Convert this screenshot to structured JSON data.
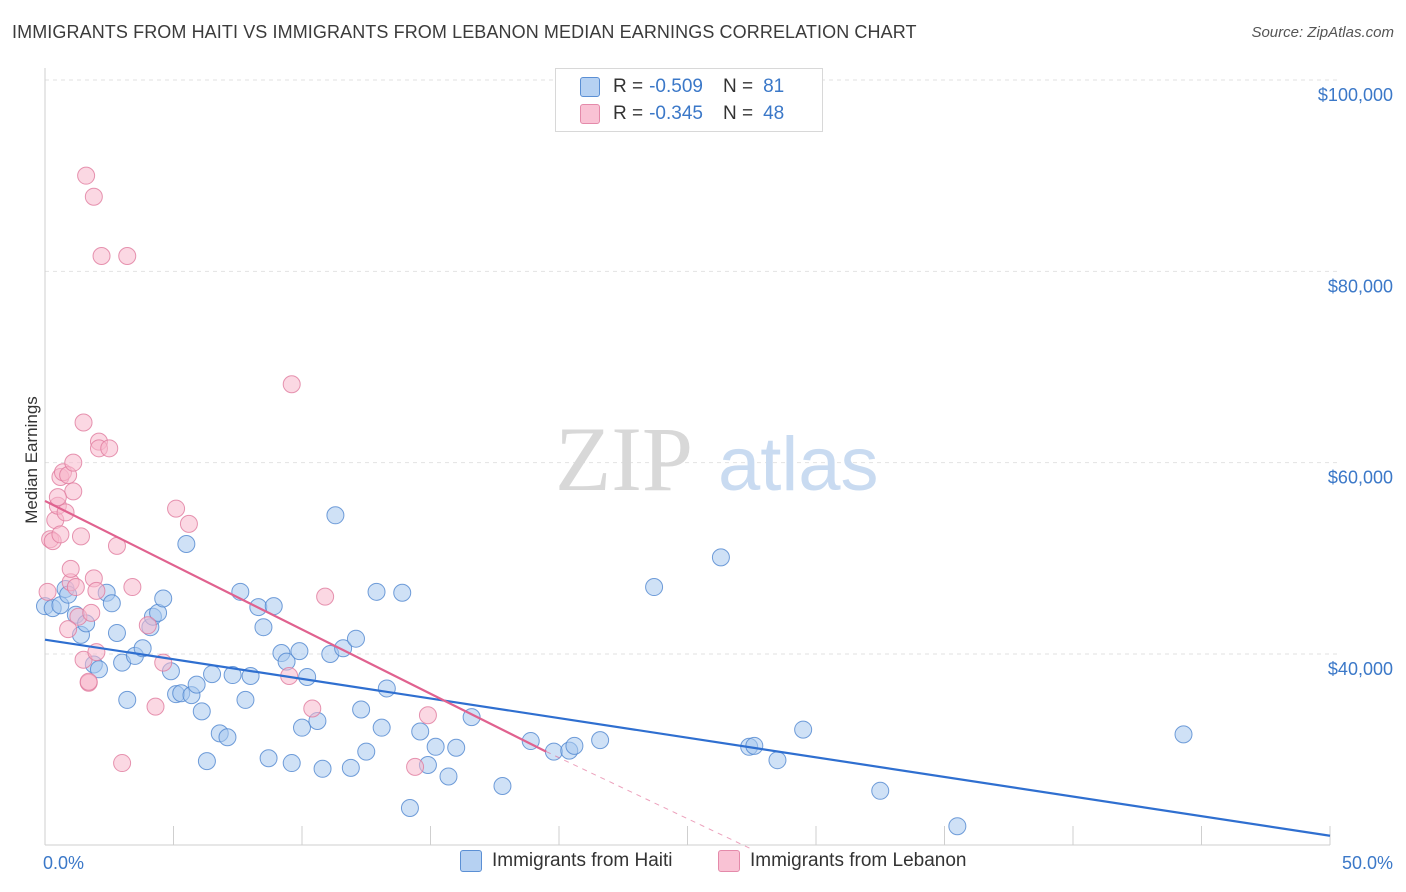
{
  "title": "IMMIGRANTS FROM HAITI VS IMMIGRANTS FROM LEBANON MEDIAN EARNINGS CORRELATION CHART",
  "source": "Source: ZipAtlas.com",
  "watermark": {
    "zip": "ZIP",
    "atlas": "atlas"
  },
  "legend": {
    "rows": [
      {
        "r_label": "R = ",
        "r_value": "-0.509",
        "n_label": "N = ",
        "n_value": "81"
      },
      {
        "r_label": "R = ",
        "r_value": "-0.345",
        "n_label": "N = ",
        "n_value": "48"
      }
    ]
  },
  "chart_data": {
    "type": "scatter",
    "title": "IMMIGRANTS FROM HAITI VS IMMIGRANTS FROM LEBANON MEDIAN EARNINGS CORRELATION CHART",
    "xlabel": "",
    "ylabel": "Median Earnings",
    "xlim": [
      0,
      50
    ],
    "ylim": [
      20000,
      102000
    ],
    "x_tick_labels": [
      "0.0%",
      "50.0%"
    ],
    "y_ticks": [
      40000,
      60000,
      80000,
      100000
    ],
    "y_tick_labels": [
      "$40,000",
      "$60,000",
      "$80,000",
      "$100,000"
    ],
    "grid": true,
    "series": [
      {
        "name": "Immigrants from Haiti",
        "color": "#a8c8ee",
        "edge": "#4f86d0",
        "trend_color": "#2f6fd0",
        "trend": {
          "x0": 0,
          "y0": 41500,
          "x1": 50,
          "y1": 21000
        },
        "points": [
          [
            0.0,
            45000
          ],
          [
            0.3,
            44800
          ],
          [
            0.6,
            45100
          ],
          [
            0.8,
            46800
          ],
          [
            0.9,
            46200
          ],
          [
            1.2,
            44100
          ],
          [
            1.4,
            42000
          ],
          [
            1.6,
            43200
          ],
          [
            1.9,
            38900
          ],
          [
            2.1,
            38400
          ],
          [
            2.4,
            46400
          ],
          [
            2.6,
            45300
          ],
          [
            2.8,
            42200
          ],
          [
            3.0,
            39100
          ],
          [
            3.2,
            35200
          ],
          [
            3.5,
            39800
          ],
          [
            3.8,
            40600
          ],
          [
            4.1,
            42800
          ],
          [
            4.2,
            43900
          ],
          [
            4.4,
            44300
          ],
          [
            4.6,
            45800
          ],
          [
            4.9,
            38200
          ],
          [
            5.1,
            35800
          ],
          [
            5.3,
            35900
          ],
          [
            5.5,
            51500
          ],
          [
            5.7,
            35700
          ],
          [
            5.9,
            36800
          ],
          [
            6.1,
            34000
          ],
          [
            6.3,
            28800
          ],
          [
            6.5,
            37900
          ],
          [
            6.8,
            31700
          ],
          [
            7.1,
            31300
          ],
          [
            7.3,
            37800
          ],
          [
            7.6,
            46500
          ],
          [
            7.8,
            35200
          ],
          [
            8.0,
            37700
          ],
          [
            8.3,
            44900
          ],
          [
            8.5,
            42800
          ],
          [
            8.7,
            29100
          ],
          [
            8.9,
            45000
          ],
          [
            9.2,
            40100
          ],
          [
            9.4,
            39200
          ],
          [
            9.6,
            28600
          ],
          [
            9.9,
            40300
          ],
          [
            10.0,
            32300
          ],
          [
            10.2,
            37600
          ],
          [
            10.6,
            33000
          ],
          [
            10.8,
            28000
          ],
          [
            11.1,
            40000
          ],
          [
            11.3,
            54500
          ],
          [
            11.6,
            40600
          ],
          [
            11.9,
            28100
          ],
          [
            12.1,
            41600
          ],
          [
            12.3,
            34200
          ],
          [
            12.5,
            29800
          ],
          [
            12.9,
            46500
          ],
          [
            13.1,
            32300
          ],
          [
            13.3,
            36400
          ],
          [
            13.9,
            46400
          ],
          [
            14.2,
            23900
          ],
          [
            14.6,
            31900
          ],
          [
            14.9,
            28400
          ],
          [
            15.2,
            30300
          ],
          [
            15.7,
            27200
          ],
          [
            16.0,
            30200
          ],
          [
            16.6,
            33400
          ],
          [
            17.8,
            26200
          ],
          [
            18.9,
            30900
          ],
          [
            19.8,
            29800
          ],
          [
            20.4,
            29900
          ],
          [
            20.6,
            30400
          ],
          [
            21.6,
            31000
          ],
          [
            23.7,
            47000
          ],
          [
            26.3,
            50100
          ],
          [
            27.4,
            30300
          ],
          [
            27.6,
            30400
          ],
          [
            28.5,
            28900
          ],
          [
            29.5,
            32100
          ],
          [
            32.5,
            25700
          ],
          [
            35.5,
            22000
          ],
          [
            44.3,
            31600
          ]
        ]
      },
      {
        "name": "Immigrants from Lebanon",
        "color": "#f7b8cc",
        "edge": "#e07a9e",
        "trend_color": "#e0628f",
        "trend": {
          "x0": 0,
          "y0": 56000,
          "x1": 19.5,
          "y1": 29800
        },
        "trend_dashed": {
          "x0": 19.5,
          "y0": 29800,
          "x1": 27.5,
          "y1": 19600
        },
        "points": [
          [
            0.1,
            46500
          ],
          [
            0.2,
            52000
          ],
          [
            0.3,
            51800
          ],
          [
            0.4,
            54000
          ],
          [
            0.5,
            55500
          ],
          [
            0.6,
            58500
          ],
          [
            0.6,
            52500
          ],
          [
            0.7,
            59000
          ],
          [
            0.8,
            54800
          ],
          [
            0.9,
            58700
          ],
          [
            1.0,
            47500
          ],
          [
            1.0,
            48900
          ],
          [
            1.1,
            60000
          ],
          [
            1.1,
            57000
          ],
          [
            1.2,
            47000
          ],
          [
            1.3,
            43900
          ],
          [
            1.4,
            52300
          ],
          [
            1.5,
            39400
          ],
          [
            1.5,
            64200
          ],
          [
            1.6,
            90000
          ],
          [
            1.7,
            37000
          ],
          [
            1.7,
            37100
          ],
          [
            1.8,
            44300
          ],
          [
            1.9,
            87800
          ],
          [
            1.9,
            47900
          ],
          [
            2.0,
            46600
          ],
          [
            2.1,
            62200
          ],
          [
            2.1,
            61500
          ],
          [
            2.2,
            81600
          ],
          [
            2.5,
            61500
          ],
          [
            2.8,
            51300
          ],
          [
            3.0,
            28600
          ],
          [
            3.2,
            81600
          ],
          [
            3.4,
            47000
          ],
          [
            4.0,
            43000
          ],
          [
            4.3,
            34500
          ],
          [
            4.6,
            39100
          ],
          [
            5.1,
            55200
          ],
          [
            5.6,
            53600
          ],
          [
            9.5,
            37700
          ],
          [
            9.6,
            68200
          ],
          [
            10.4,
            34300
          ],
          [
            10.9,
            46000
          ],
          [
            14.4,
            28200
          ],
          [
            14.9,
            33600
          ],
          [
            0.9,
            42600
          ],
          [
            0.5,
            56400
          ],
          [
            2.0,
            40200
          ]
        ]
      }
    ]
  }
}
